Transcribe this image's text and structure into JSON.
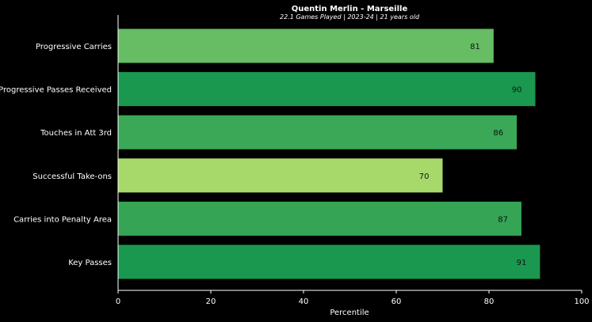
{
  "chart_data": {
    "type": "bar",
    "orientation": "horizontal",
    "title": "Quentin Merlin - Marseille",
    "subtitle": "22.1 Games Played | 2023-24 | 21 years old",
    "xlabel": "Percentile",
    "ylabel": "",
    "xlim": [
      0,
      100
    ],
    "xticks": [
      "0",
      "20",
      "40",
      "60",
      "80",
      "100"
    ],
    "grid": false,
    "categories": [
      "Progressive Carries",
      "Progressive Passes Received",
      "Touches in Att 3rd",
      "Successful Take-ons",
      "Carries into Penalty Area",
      "Key Passes"
    ],
    "values": [
      81,
      90,
      86,
      70,
      87,
      91
    ],
    "value_labels": [
      "81",
      "90",
      "86",
      "70",
      "87",
      "91"
    ],
    "colors": [
      "#66bd63",
      "#1a9850",
      "#3aa856",
      "#a6d96a",
      "#35a455",
      "#1a9850"
    ]
  }
}
